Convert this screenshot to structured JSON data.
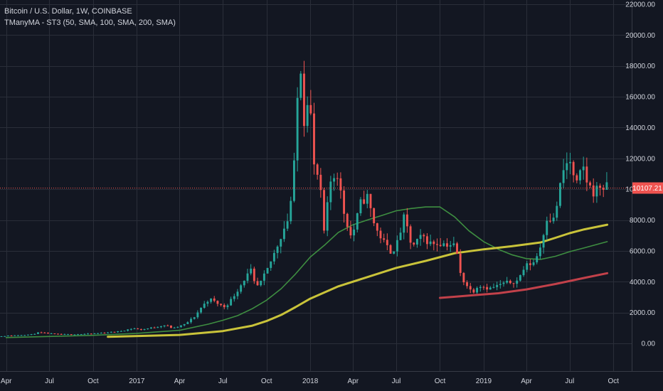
{
  "header": {
    "symbol_line": "Bitcoin / U.S. Dollar, 1W, COINBASE",
    "indicator_line": "TManyMA - ST3 (50, SMA, 100, SMA, 200, SMA)"
  },
  "colors": {
    "background": "#131722",
    "grid": "#2a2e39",
    "axis_text": "#d1d4dc",
    "up": "#26a69a",
    "down": "#ef5350",
    "ma50": "#3e8e41",
    "ma100": "#c9c33a",
    "ma200": "#c2414a",
    "price_line": "#ef5350"
  },
  "chart_data": {
    "type": "candlestick",
    "ylim": [
      -1600,
      22000
    ],
    "y_ticks": [
      {
        "v": 22000,
        "label": "22000.00"
      },
      {
        "v": 20000,
        "label": "20000.00"
      },
      {
        "v": 18000,
        "label": "18000.00"
      },
      {
        "v": 16000,
        "label": "16000.00"
      },
      {
        "v": 14000,
        "label": "14000.00"
      },
      {
        "v": 12000,
        "label": "12000.00"
      },
      {
        "v": 10000,
        "label": "10000.00"
      },
      {
        "v": 8000,
        "label": "8000.00"
      },
      {
        "v": 6000,
        "label": "6000.00"
      },
      {
        "v": 4000,
        "label": "4000.00"
      },
      {
        "v": 2000,
        "label": "2000.00"
      },
      {
        "v": 0,
        "label": "0.00"
      }
    ],
    "x_ticks": [
      {
        "date": "2016-04-01",
        "label": "Apr"
      },
      {
        "date": "2016-07-01",
        "label": "Jul"
      },
      {
        "date": "2016-10-01",
        "label": "Oct"
      },
      {
        "date": "2017-01-01",
        "label": "2017"
      },
      {
        "date": "2017-04-01",
        "label": "Apr"
      },
      {
        "date": "2017-07-01",
        "label": "Jul"
      },
      {
        "date": "2017-10-01",
        "label": "Oct"
      },
      {
        "date": "2018-01-01",
        "label": "2018"
      },
      {
        "date": "2018-04-01",
        "label": "Apr"
      },
      {
        "date": "2018-07-01",
        "label": "Jul"
      },
      {
        "date": "2018-10-01",
        "label": "Oct"
      },
      {
        "date": "2019-01-01",
        "label": "2019"
      },
      {
        "date": "2019-04-01",
        "label": "Apr"
      },
      {
        "date": "2019-07-01",
        "label": "Jul"
      },
      {
        "date": "2019-10-01",
        "label": "Oct"
      }
    ],
    "last_price": {
      "value": 10107.21,
      "label": "10107.21"
    },
    "grid": true,
    "price_path": [
      [
        "2016-03-01",
        420
      ],
      [
        "2016-06-01",
        580
      ],
      [
        "2016-06-15",
        700
      ],
      [
        "2016-08-01",
        570
      ],
      [
        "2016-10-01",
        615
      ],
      [
        "2016-12-01",
        770
      ],
      [
        "2017-01-01",
        980
      ],
      [
        "2017-01-15",
        880
      ],
      [
        "2017-02-15",
        1050
      ],
      [
        "2017-03-10",
        1190
      ],
      [
        "2017-03-25",
        960
      ],
      [
        "2017-04-20",
        1250
      ],
      [
        "2017-05-10",
        1750
      ],
      [
        "2017-05-25",
        2400
      ],
      [
        "2017-06-10",
        2900
      ],
      [
        "2017-07-10",
        2350
      ],
      [
        "2017-07-20",
        2600
      ],
      [
        "2017-08-05",
        3300
      ],
      [
        "2017-08-25",
        4300
      ],
      [
        "2017-09-05",
        4700
      ],
      [
        "2017-09-15",
        3600
      ],
      [
        "2017-09-25",
        3900
      ],
      [
        "2017-10-10",
        4800
      ],
      [
        "2017-10-25",
        5900
      ],
      [
        "2017-11-10",
        7200
      ],
      [
        "2017-11-25",
        8300
      ],
      [
        "2017-12-05",
        11500
      ],
      [
        "2017-12-17",
        19000
      ],
      [
        "2017-12-27",
        14000
      ],
      [
        "2018-01-05",
        17000
      ],
      [
        "2018-01-15",
        11500
      ],
      [
        "2018-01-28",
        10500
      ],
      [
        "2018-02-05",
        7000
      ],
      [
        "2018-02-20",
        10500
      ],
      [
        "2018-03-05",
        11200
      ],
      [
        "2018-03-20",
        8500
      ],
      [
        "2018-04-05",
        6800
      ],
      [
        "2018-04-25",
        9200
      ],
      [
        "2018-05-08",
        9500
      ],
      [
        "2018-05-25",
        7500
      ],
      [
        "2018-06-15",
        6400
      ],
      [
        "2018-06-28",
        5900
      ],
      [
        "2018-07-10",
        6500
      ],
      [
        "2018-07-25",
        8200
      ],
      [
        "2018-08-10",
        6200
      ],
      [
        "2018-09-01",
        7000
      ],
      [
        "2018-09-15",
        6500
      ],
      [
        "2018-10-10",
        6500
      ],
      [
        "2018-11-10",
        6350
      ],
      [
        "2018-11-20",
        4500
      ],
      [
        "2018-11-28",
        4000
      ],
      [
        "2018-12-15",
        3300
      ],
      [
        "2018-12-28",
        3800
      ],
      [
        "2019-01-20",
        3550
      ],
      [
        "2019-02-20",
        3900
      ],
      [
        "2019-03-20",
        4050
      ],
      [
        "2019-04-05",
        5000
      ],
      [
        "2019-04-25",
        5300
      ],
      [
        "2019-05-10",
        6500
      ],
      [
        "2019-05-20",
        8200
      ],
      [
        "2019-06-05",
        8000
      ],
      [
        "2019-06-20",
        10500
      ],
      [
        "2019-06-27",
        11500
      ],
      [
        "2019-07-10",
        11800
      ],
      [
        "2019-07-20",
        10000
      ],
      [
        "2019-08-05",
        11500
      ],
      [
        "2019-08-15",
        10300
      ],
      [
        "2019-08-28",
        9800
      ],
      [
        "2019-09-10",
        10200
      ],
      [
        "2019-09-18",
        10107.21
      ]
    ],
    "series": [
      {
        "name": "50",
        "color": "#3e8e41",
        "points": [
          [
            "2016-04-01",
            380
          ],
          [
            "2016-10-01",
            520
          ],
          [
            "2017-01-01",
            650
          ],
          [
            "2017-04-01",
            850
          ],
          [
            "2017-06-01",
            1250
          ],
          [
            "2017-07-01",
            1500
          ],
          [
            "2017-08-01",
            1800
          ],
          [
            "2017-09-01",
            2250
          ],
          [
            "2017-10-01",
            2800
          ],
          [
            "2017-11-01",
            3550
          ],
          [
            "2017-12-01",
            4500
          ],
          [
            "2018-01-01",
            5600
          ],
          [
            "2018-02-01",
            6400
          ],
          [
            "2018-03-01",
            7200
          ],
          [
            "2018-04-01",
            7700
          ],
          [
            "2018-05-01",
            8000
          ],
          [
            "2018-06-01",
            8300
          ],
          [
            "2018-07-01",
            8600
          ],
          [
            "2018-08-01",
            8750
          ],
          [
            "2018-09-01",
            8850
          ],
          [
            "2018-10-01",
            8850
          ],
          [
            "2018-11-01",
            8200
          ],
          [
            "2018-12-01",
            7300
          ],
          [
            "2019-01-01",
            6600
          ],
          [
            "2019-02-01",
            6100
          ],
          [
            "2019-03-01",
            5750
          ],
          [
            "2019-04-01",
            5500
          ],
          [
            "2019-05-01",
            5450
          ],
          [
            "2019-06-01",
            5650
          ],
          [
            "2019-07-01",
            5950
          ],
          [
            "2019-08-01",
            6200
          ],
          [
            "2019-09-18",
            6600
          ]
        ]
      },
      {
        "name": "100",
        "color": "#c9c33a",
        "points": [
          [
            "2016-11-01",
            430
          ],
          [
            "2017-04-01",
            550
          ],
          [
            "2017-07-01",
            800
          ],
          [
            "2017-09-01",
            1150
          ],
          [
            "2017-10-01",
            1450
          ],
          [
            "2017-11-01",
            1850
          ],
          [
            "2017-12-01",
            2350
          ],
          [
            "2018-01-01",
            2900
          ],
          [
            "2018-03-01",
            3700
          ],
          [
            "2018-05-01",
            4300
          ],
          [
            "2018-07-01",
            4900
          ],
          [
            "2018-09-01",
            5350
          ],
          [
            "2018-11-01",
            5850
          ],
          [
            "2019-01-01",
            6100
          ],
          [
            "2019-03-01",
            6300
          ],
          [
            "2019-05-01",
            6550
          ],
          [
            "2019-06-01",
            6850
          ],
          [
            "2019-07-01",
            7150
          ],
          [
            "2019-08-01",
            7400
          ],
          [
            "2019-09-18",
            7700
          ]
        ]
      },
      {
        "name": "200",
        "color": "#c2414a",
        "points": [
          [
            "2018-10-01",
            2950
          ],
          [
            "2018-12-01",
            3100
          ],
          [
            "2019-02-01",
            3250
          ],
          [
            "2019-04-01",
            3500
          ],
          [
            "2019-06-01",
            3850
          ],
          [
            "2019-08-01",
            4250
          ],
          [
            "2019-09-18",
            4550
          ]
        ]
      }
    ]
  }
}
